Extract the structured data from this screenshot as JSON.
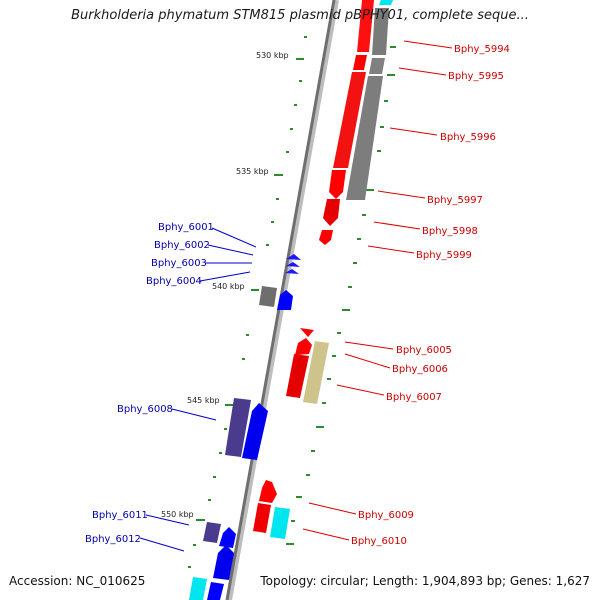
{
  "title": "Burkholderia phymatum STM815 plasmid pBPHY01, complete seque...",
  "accession": "Accession: NC_010625",
  "summary": "Topology: circular; Length: 1,904,893 bp; Genes: 1,627",
  "colors": {
    "forward": "#ff0000",
    "reverse": "#0000ff",
    "grey": "#808080",
    "olive": "#cfc48c",
    "cyan": "#00ffff",
    "navy": "#4a3b8c",
    "tick": "#2d8a2d",
    "forward_label": "#cc0000",
    "reverse_label": "#0000aa"
  },
  "scale_ticks": [
    "530 kbp",
    "535 kbp",
    "540 kbp",
    "545 kbp",
    "550 kbp"
  ],
  "labels_right": [
    "Bphy_5994",
    "Bphy_5995",
    "Bphy_5996",
    "Bphy_5997",
    "Bphy_5998",
    "Bphy_5999",
    "Bphy_6005",
    "Bphy_6006",
    "Bphy_6007",
    "Bphy_6009",
    "Bphy_6010"
  ],
  "labels_left": [
    "Bphy_6001",
    "Bphy_6002",
    "Bphy_6003",
    "Bphy_6004",
    "Bphy_6008",
    "Bphy_6011",
    "Bphy_6012"
  ]
}
